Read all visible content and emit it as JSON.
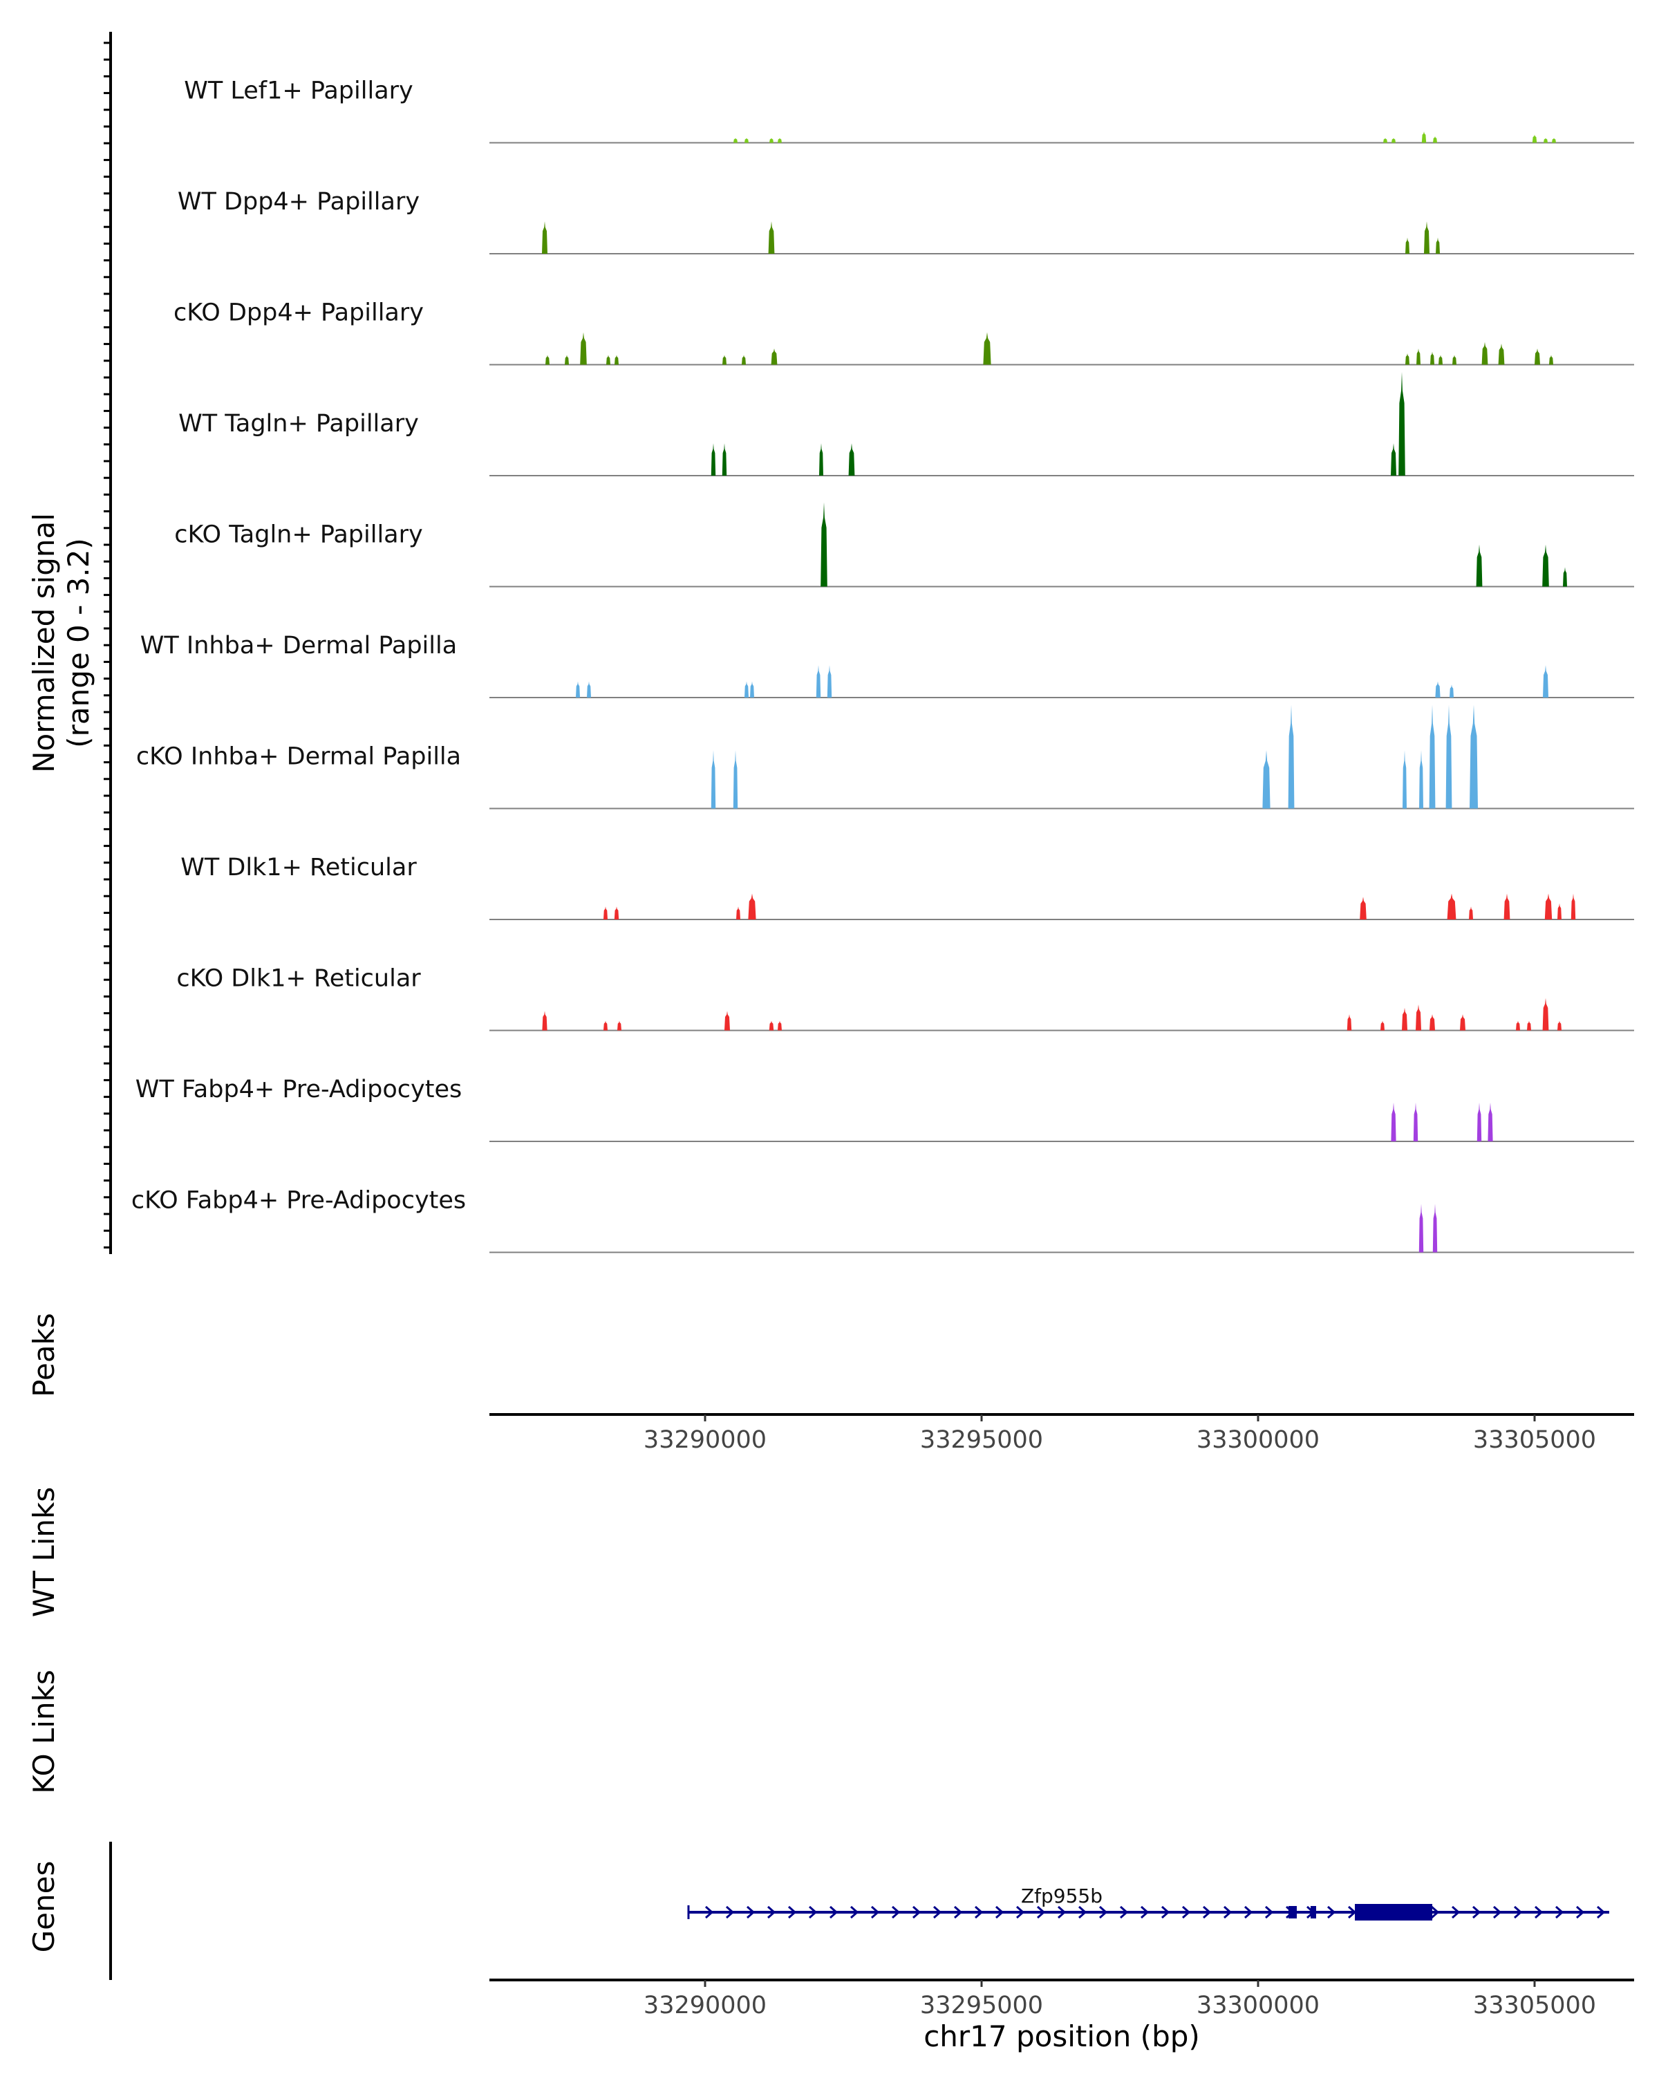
{
  "chart_data": {
    "type": "area",
    "title": "",
    "signal_axis_label_line1": "Normalized signal",
    "signal_axis_label_line2": "(range 0 - 3.2)",
    "ylim": [
      0,
      3.2
    ],
    "xlabel": "chr17 position (bp)",
    "xlim": [
      33286100,
      33306800
    ],
    "xticks": [
      33290000,
      33295000,
      33300000,
      33305000
    ],
    "xtick_labels": [
      "33290000",
      "33295000",
      "33300000",
      "33305000"
    ],
    "tracks": [
      {
        "name": "WT Lef1+ Papillary",
        "color": "#7CCD1C",
        "peaks": [
          [
            33290550,
            0.15,
            60
          ],
          [
            33290750,
            0.15,
            60
          ],
          [
            33291200,
            0.15,
            70
          ],
          [
            33291350,
            0.15,
            60
          ],
          [
            33302300,
            0.15,
            70
          ],
          [
            33302450,
            0.15,
            60
          ],
          [
            33303000,
            0.35,
            80
          ],
          [
            33303200,
            0.2,
            60
          ],
          [
            33305000,
            0.25,
            80
          ],
          [
            33305200,
            0.15,
            60
          ],
          [
            33305350,
            0.15,
            60
          ]
        ]
      },
      {
        "name": "WT Dpp4+ Papillary",
        "color": "#4C8C00",
        "peaks": [
          [
            33287100,
            1.0,
            100
          ],
          [
            33291200,
            1.0,
            110
          ],
          [
            33302700,
            0.5,
            60
          ],
          [
            33303050,
            1.0,
            100
          ],
          [
            33303250,
            0.5,
            60
          ]
        ]
      },
      {
        "name": "cKO Dpp4+ Papillary",
        "color": "#4C8C00",
        "peaks": [
          [
            33287150,
            0.3,
            60
          ],
          [
            33287500,
            0.3,
            60
          ],
          [
            33287800,
            1.0,
            120
          ],
          [
            33288250,
            0.3,
            60
          ],
          [
            33288400,
            0.3,
            60
          ],
          [
            33290350,
            0.3,
            60
          ],
          [
            33290700,
            0.3,
            60
          ],
          [
            33291250,
            0.5,
            110
          ],
          [
            33295100,
            1.0,
            140
          ],
          [
            33302700,
            0.35,
            60
          ],
          [
            33302900,
            0.5,
            60
          ],
          [
            33303150,
            0.4,
            60
          ],
          [
            33303300,
            0.3,
            60
          ],
          [
            33303550,
            0.3,
            60
          ],
          [
            33304100,
            0.7,
            110
          ],
          [
            33304400,
            0.65,
            110
          ],
          [
            33305050,
            0.5,
            100
          ],
          [
            33305300,
            0.3,
            60
          ]
        ]
      },
      {
        "name": "WT Tagln+ Papillary",
        "color": "#006400",
        "peaks": [
          [
            33290150,
            1.0,
            80
          ],
          [
            33290350,
            1.0,
            80
          ],
          [
            33292100,
            1.0,
            70
          ],
          [
            33292650,
            1.0,
            110
          ],
          [
            33302450,
            1.0,
            100
          ],
          [
            33302600,
            3.2,
            120
          ]
        ]
      },
      {
        "name": "cKO Tagln+ Papillary",
        "color": "#006400",
        "peaks": [
          [
            33292150,
            2.6,
            120
          ],
          [
            33304000,
            1.3,
            110
          ],
          [
            33305200,
            1.3,
            120
          ],
          [
            33305550,
            0.6,
            70
          ]
        ]
      },
      {
        "name": "WT Inhba+ Dermal Papilla",
        "color": "#5DADE2",
        "peaks": [
          [
            33287700,
            0.5,
            70
          ],
          [
            33287900,
            0.5,
            70
          ],
          [
            33290750,
            0.5,
            70
          ],
          [
            33290850,
            0.5,
            70
          ],
          [
            33292050,
            1.0,
            80
          ],
          [
            33292250,
            1.0,
            80
          ],
          [
            33303250,
            0.5,
            90
          ],
          [
            33303500,
            0.4,
            60
          ],
          [
            33305200,
            1.0,
            100
          ]
        ]
      },
      {
        "name": "cKO Inhba+ Dermal Papilla",
        "color": "#5DADE2",
        "peaks": [
          [
            33290150,
            1.8,
            80
          ],
          [
            33290550,
            1.8,
            80
          ],
          [
            33300150,
            1.8,
            140
          ],
          [
            33300600,
            3.2,
            110
          ],
          [
            33302650,
            1.8,
            70
          ],
          [
            33302950,
            1.8,
            70
          ],
          [
            33303150,
            3.2,
            110
          ],
          [
            33303450,
            3.2,
            110
          ],
          [
            33303900,
            3.2,
            150
          ]
        ]
      },
      {
        "name": "WT Dlk1+ Reticular",
        "color": "#EE2C2C",
        "peaks": [
          [
            33288200,
            0.4,
            70
          ],
          [
            33288400,
            0.4,
            80
          ],
          [
            33290600,
            0.4,
            70
          ],
          [
            33290850,
            0.8,
            140
          ],
          [
            33301900,
            0.7,
            120
          ],
          [
            33303500,
            0.8,
            160
          ],
          [
            33303850,
            0.4,
            70
          ],
          [
            33304500,
            0.8,
            110
          ],
          [
            33305250,
            0.8,
            130
          ],
          [
            33305450,
            0.5,
            60
          ],
          [
            33305700,
            0.8,
            80
          ]
        ]
      },
      {
        "name": "cKO Dlk1+ Reticular",
        "color": "#EE2C2C",
        "peaks": [
          [
            33287100,
            0.6,
            90
          ],
          [
            33288200,
            0.3,
            70
          ],
          [
            33288450,
            0.3,
            70
          ],
          [
            33290400,
            0.6,
            100
          ],
          [
            33291200,
            0.3,
            80
          ],
          [
            33291350,
            0.3,
            60
          ],
          [
            33301650,
            0.5,
            80
          ],
          [
            33302250,
            0.3,
            70
          ],
          [
            33302650,
            0.7,
            100
          ],
          [
            33302900,
            0.8,
            100
          ],
          [
            33303150,
            0.5,
            100
          ],
          [
            33303700,
            0.5,
            100
          ],
          [
            33304700,
            0.3,
            70
          ],
          [
            33304900,
            0.3,
            70
          ],
          [
            33305200,
            1.0,
            110
          ],
          [
            33305450,
            0.3,
            60
          ]
        ]
      },
      {
        "name": "WT Fabp4+ Pre-Adipocytes",
        "color": "#A33FE0",
        "peaks": [
          [
            33302450,
            1.2,
            90
          ],
          [
            33302850,
            1.2,
            80
          ],
          [
            33304000,
            1.2,
            80
          ],
          [
            33304200,
            1.2,
            90
          ]
        ]
      },
      {
        "name": "cKO Fabp4+ Pre-Adipocytes",
        "color": "#A33FE0",
        "peaks": [
          [
            33302950,
            1.5,
            80
          ],
          [
            33303200,
            1.5,
            80
          ]
        ]
      }
    ],
    "panels": {
      "peaks": "Peaks",
      "wt_links": "WT Links",
      "ko_links": "KO Links",
      "genes": "Genes"
    },
    "gene": {
      "name": "Zfp955b",
      "color": "#00008B",
      "start": 33289700,
      "end": 33306350,
      "strand": "+",
      "exons": [
        [
          33300550,
          33300700
        ],
        [
          33300950,
          33301050
        ],
        [
          33301750,
          33303150
        ]
      ],
      "thick_exons": [
        [
          33301750,
          33303150
        ]
      ]
    }
  }
}
